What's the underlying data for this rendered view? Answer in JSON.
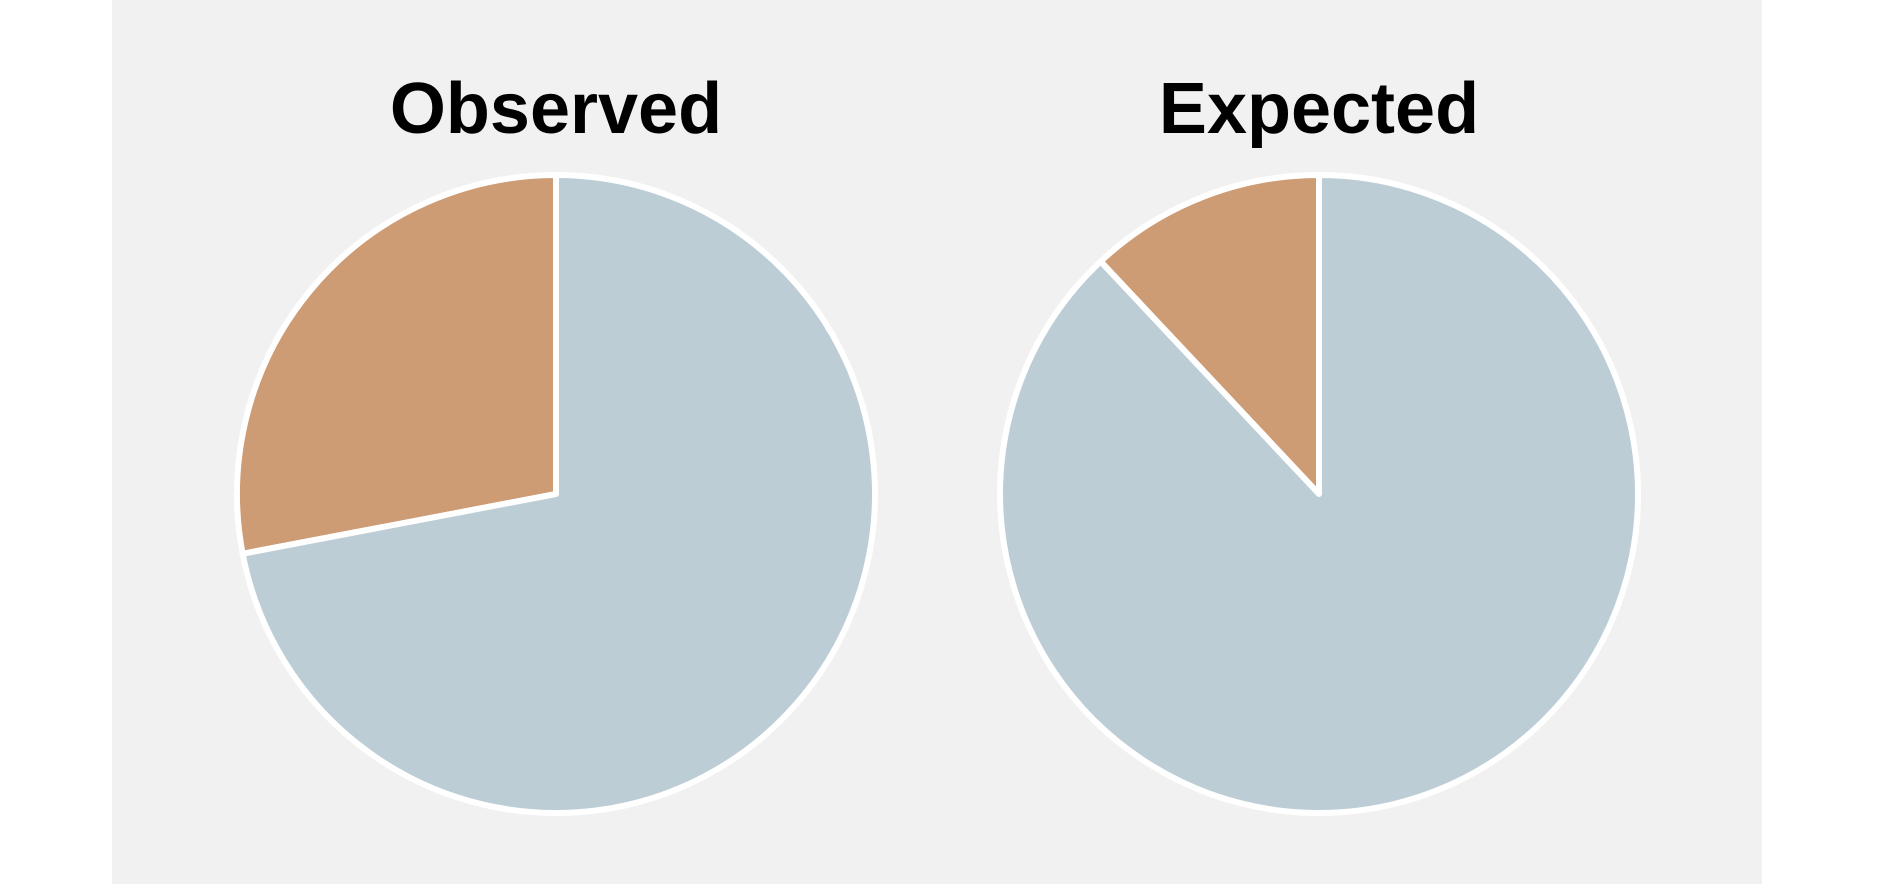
{
  "chart_data": [
    {
      "type": "pie",
      "title": "Observed",
      "start_angle_deg": 90,
      "direction": "counterclockwise",
      "slices": [
        {
          "value": 28,
          "color": "#cd9b74"
        },
        {
          "value": 72,
          "color": "#bccdd6"
        }
      ]
    },
    {
      "type": "pie",
      "title": "Expected",
      "start_angle_deg": 90,
      "direction": "counterclockwise",
      "slices": [
        {
          "value": 12,
          "color": "#cd9b74"
        },
        {
          "value": 88,
          "color": "#bccdd6"
        }
      ]
    }
  ],
  "colors": {
    "panel_background": "#f1f1f1",
    "slice_edge": "#ffffff"
  }
}
